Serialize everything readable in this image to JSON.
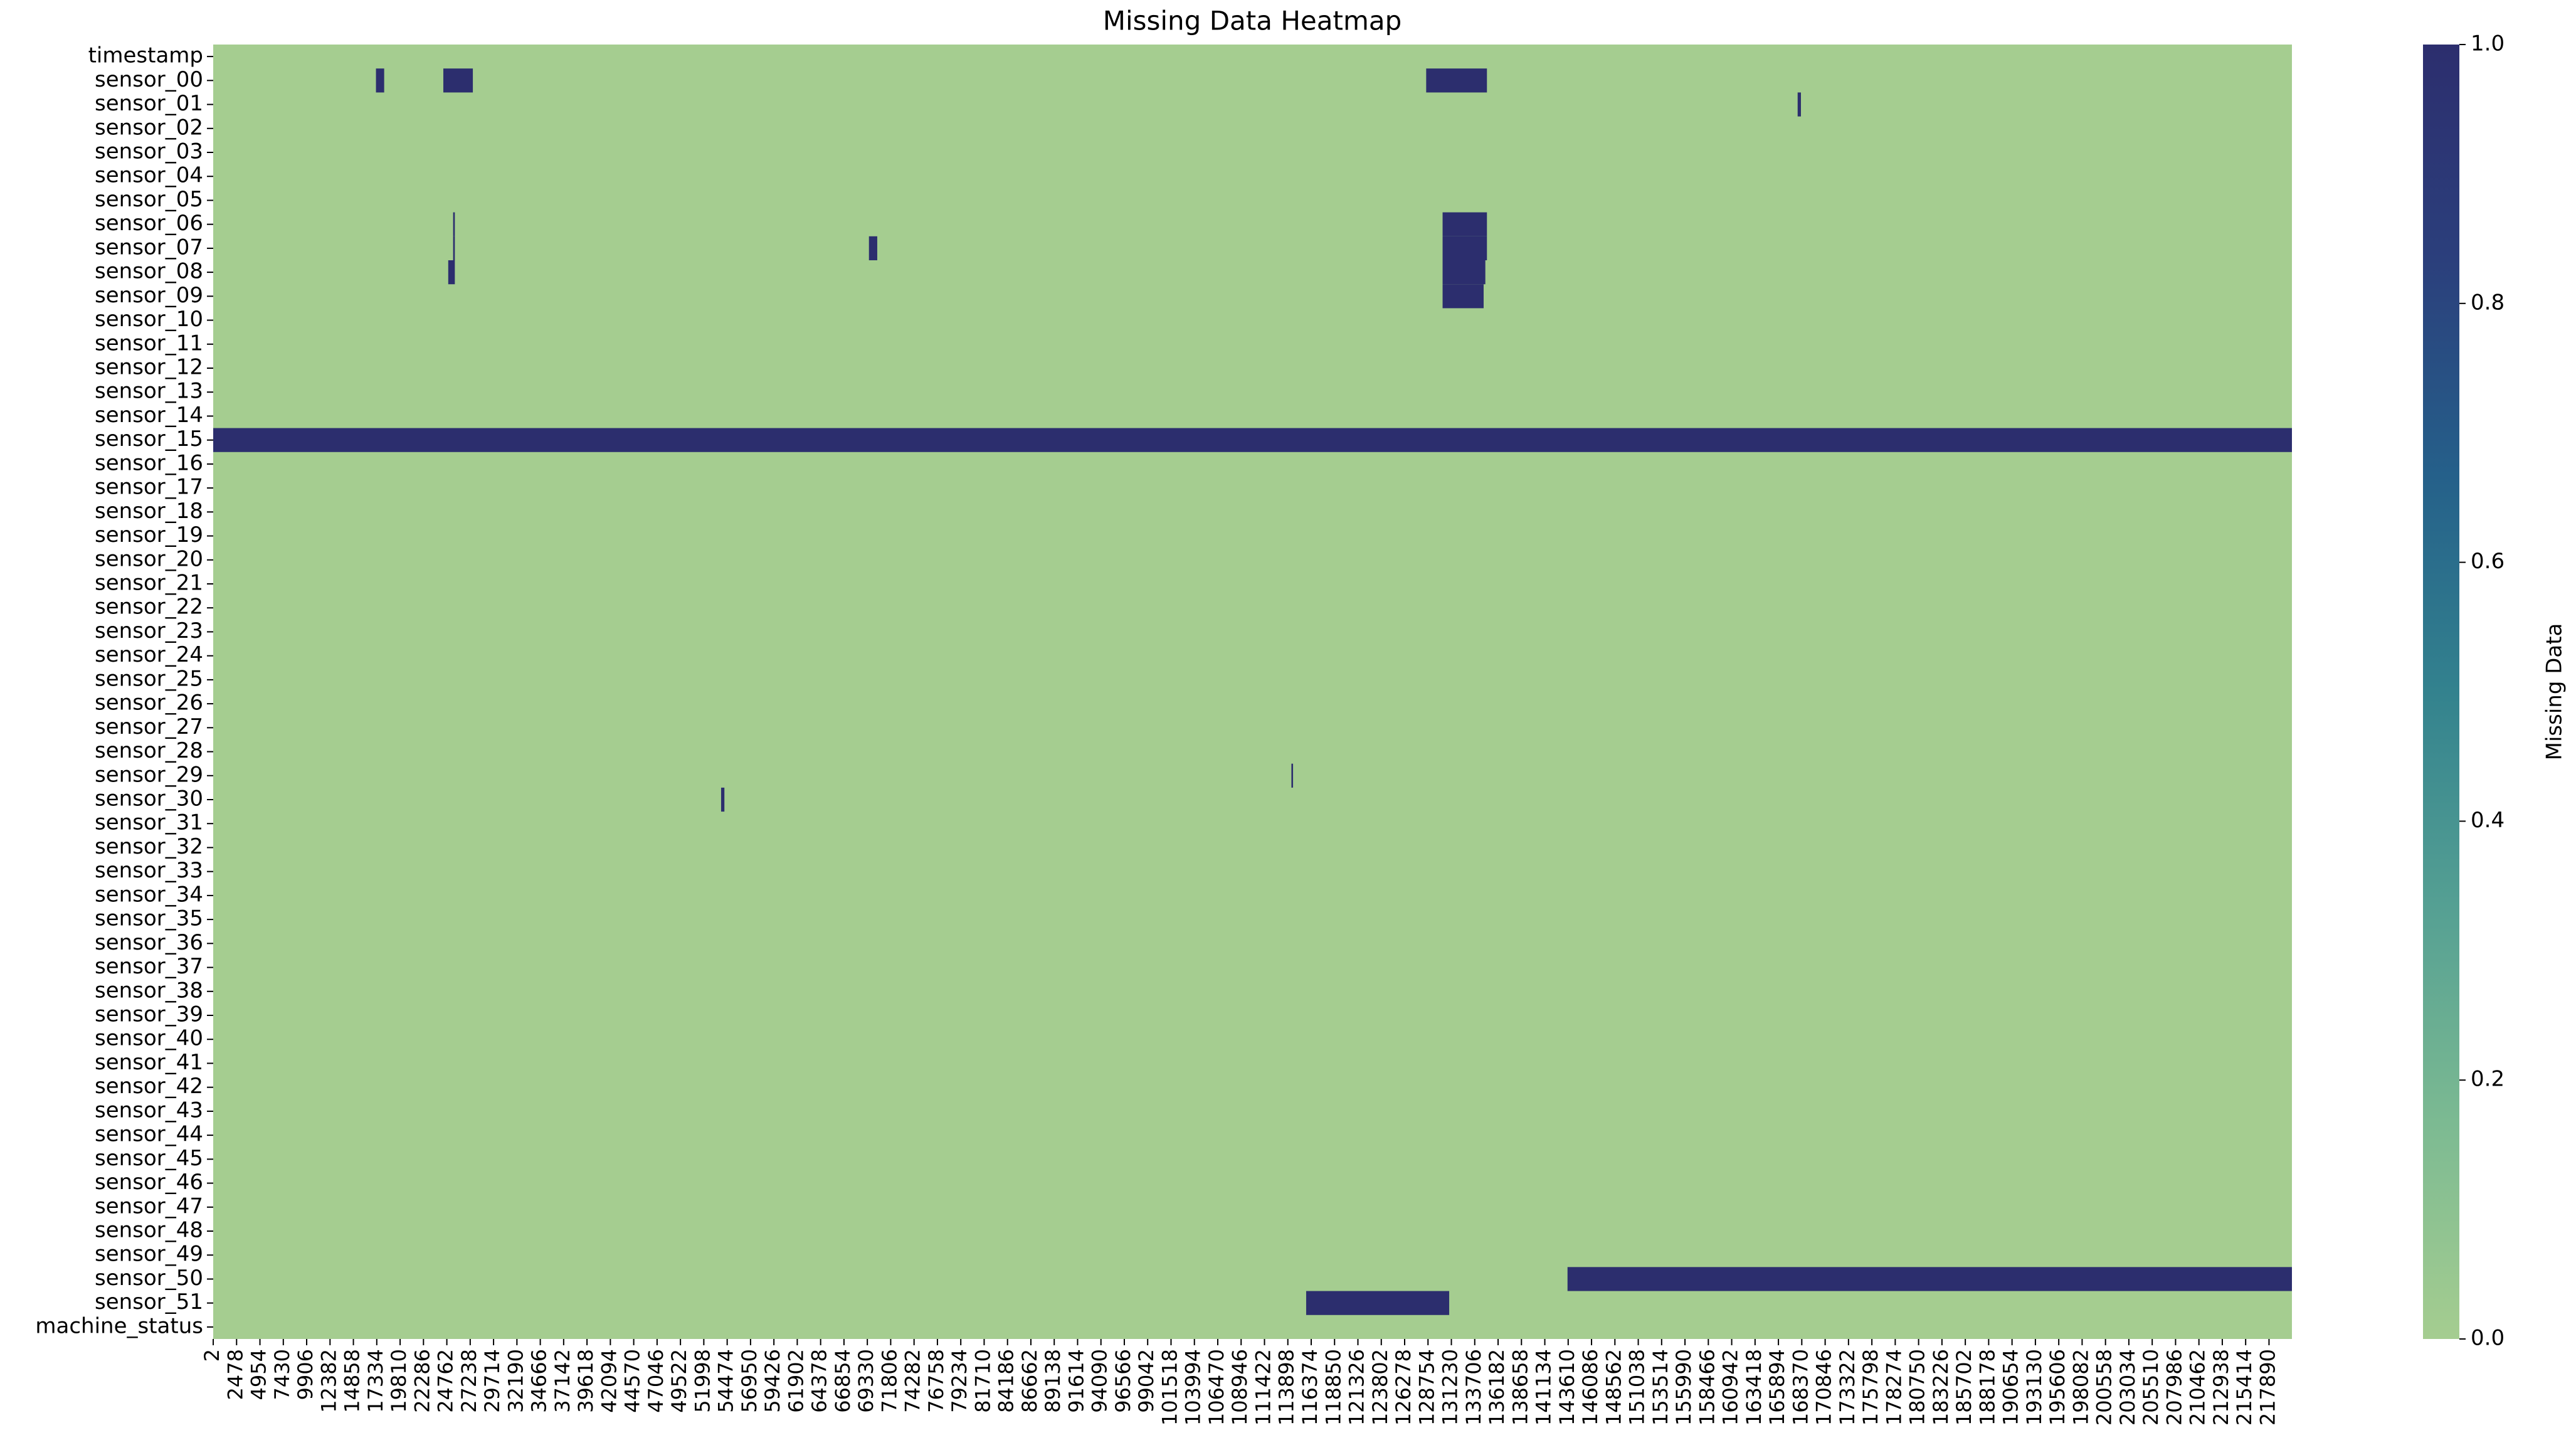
{
  "chart_data": {
    "type": "heatmap",
    "title": "Missing Data Heatmap",
    "rows": [
      "timestamp",
      "sensor_00",
      "sensor_01",
      "sensor_02",
      "sensor_03",
      "sensor_04",
      "sensor_05",
      "sensor_06",
      "sensor_07",
      "sensor_08",
      "sensor_09",
      "sensor_10",
      "sensor_11",
      "sensor_12",
      "sensor_13",
      "sensor_14",
      "sensor_15",
      "sensor_16",
      "sensor_17",
      "sensor_18",
      "sensor_19",
      "sensor_20",
      "sensor_21",
      "sensor_22",
      "sensor_23",
      "sensor_24",
      "sensor_25",
      "sensor_26",
      "sensor_27",
      "sensor_28",
      "sensor_29",
      "sensor_30",
      "sensor_31",
      "sensor_32",
      "sensor_33",
      "sensor_34",
      "sensor_35",
      "sensor_36",
      "sensor_37",
      "sensor_38",
      "sensor_39",
      "sensor_40",
      "sensor_41",
      "sensor_42",
      "sensor_43",
      "sensor_44",
      "sensor_45",
      "sensor_46",
      "sensor_47",
      "sensor_48",
      "sensor_49",
      "sensor_50",
      "sensor_51",
      "machine_status"
    ],
    "xlim": [
      0,
      220320
    ],
    "xticks": [
      2,
      2478,
      4954,
      7430,
      9906,
      12382,
      14858,
      17334,
      19810,
      22286,
      24762,
      27238,
      29714,
      32190,
      34666,
      37142,
      39618,
      42094,
      44570,
      47046,
      49522,
      51998,
      54474,
      56950,
      59426,
      61902,
      64378,
      66854,
      69330,
      71806,
      74282,
      76758,
      79234,
      81710,
      84186,
      86662,
      89138,
      91614,
      94090,
      96566,
      99042,
      101518,
      103994,
      106470,
      108946,
      111422,
      113898,
      116374,
      118850,
      121326,
      123802,
      126278,
      128754,
      131230,
      133706,
      136182,
      138658,
      141134,
      143610,
      146086,
      148562,
      151038,
      153514,
      155990,
      158466,
      160942,
      163418,
      165894,
      168370,
      170846,
      173322,
      175798,
      178274,
      180750,
      183226,
      185702,
      188178,
      190654,
      193130,
      195606,
      198082,
      200558,
      203034,
      205510,
      207986,
      210462,
      212938,
      215414,
      217890
    ],
    "default_value": 0,
    "cells": [
      {
        "row": "sensor_00",
        "x": [
          17250,
          18120
        ],
        "value": 1
      },
      {
        "row": "sensor_00",
        "x": [
          24390,
          27520
        ],
        "value": 1
      },
      {
        "row": "sensor_00",
        "x": [
          128560,
          135000
        ],
        "value": 1
      },
      {
        "row": "sensor_01",
        "x": [
          167930,
          168280
        ],
        "value": 1
      },
      {
        "row": "sensor_06",
        "x": [
          25430,
          25610
        ],
        "value": 1
      },
      {
        "row": "sensor_06",
        "x": [
          130300,
          135000
        ],
        "value": 1
      },
      {
        "row": "sensor_07",
        "x": [
          25430,
          25610
        ],
        "value": 1
      },
      {
        "row": "sensor_07",
        "x": [
          69500,
          70380
        ],
        "value": 1
      },
      {
        "row": "sensor_07",
        "x": [
          130300,
          135000
        ],
        "value": 1
      },
      {
        "row": "sensor_08",
        "x": [
          24910,
          25610
        ],
        "value": 1
      },
      {
        "row": "sensor_08",
        "x": [
          130300,
          134830
        ],
        "value": 1
      },
      {
        "row": "sensor_09",
        "x": [
          130300,
          134650
        ],
        "value": 1
      },
      {
        "row": "sensor_15",
        "x": [
          0,
          220320
        ],
        "value": 1
      },
      {
        "row": "sensor_29",
        "x": [
          114275,
          114450
        ],
        "value": 1
      },
      {
        "row": "sensor_30",
        "x": [
          53830,
          54180
        ],
        "value": 1
      },
      {
        "row": "sensor_50",
        "x": [
          143540,
          220320
        ],
        "value": 1
      },
      {
        "row": "sensor_51",
        "x": [
          115840,
          131000
        ],
        "value": 1
      }
    ],
    "colormap": [
      "#a5cd90",
      "#7cba92",
      "#55a093",
      "#33828e",
      "#25608a",
      "#2b3f7c",
      "#2c2e6e"
    ],
    "colorbar": {
      "label": "Missing Data",
      "lim": [
        0,
        1
      ],
      "ticks": [
        {
          "value": 0,
          "label": "0.0"
        },
        {
          "value": 0.2,
          "label": "0.2"
        },
        {
          "value": 0.4,
          "label": "0.4"
        },
        {
          "value": 0.6,
          "label": "0.6"
        },
        {
          "value": 0.8,
          "label": "0.8"
        },
        {
          "value": 1,
          "label": "1.0"
        }
      ]
    }
  }
}
